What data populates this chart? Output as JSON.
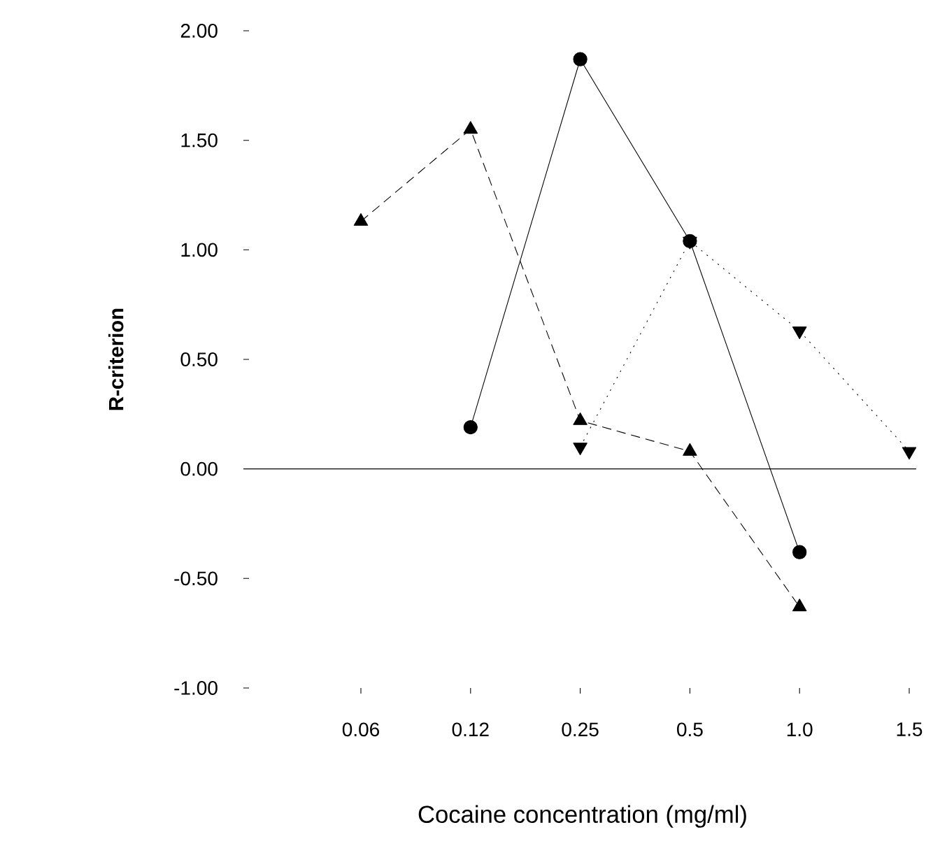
{
  "chart_data": {
    "type": "line",
    "xlabel": "Cocaine concentration (mg/ml)",
    "ylabel": "R-criterion",
    "categories": [
      "0.06",
      "0.12",
      "0.25",
      "0.5",
      "1.0",
      "1.5"
    ],
    "ylim": [
      -1,
      2
    ],
    "yticks": [
      {
        "value": -1,
        "label": "-1.00"
      },
      {
        "value": -0.5,
        "label": "-0.50"
      },
      {
        "value": 0,
        "label": "0.00"
      },
      {
        "value": 0.5,
        "label": "0.50"
      },
      {
        "value": 1,
        "label": "1.00"
      },
      {
        "value": 1.5,
        "label": "1.50"
      },
      {
        "value": 2,
        "label": "2.00"
      }
    ],
    "ref_lines": [
      {
        "axis": "y",
        "value": 0,
        "color": "#000000",
        "line_style": "solid"
      }
    ],
    "series": [
      {
        "color": "#000000",
        "marker": "circle",
        "line_style": "solid",
        "values": [
          null,
          0.19,
          1.87,
          1.04,
          -0.38,
          null
        ]
      },
      {
        "color": "#000000",
        "marker": "triangle",
        "line_style": "dashed",
        "values": [
          1.13,
          1.55,
          0.22,
          0.08,
          -0.63,
          null
        ]
      },
      {
        "color": "#000000",
        "marker": "triangle-down",
        "line_style": "dotted",
        "values": [
          null,
          null,
          0.1,
          1.04,
          0.63,
          0.08
        ]
      }
    ]
  }
}
